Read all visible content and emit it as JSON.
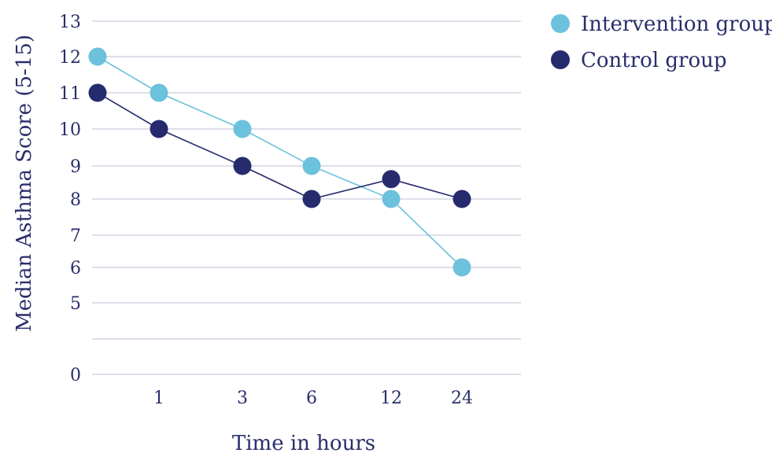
{
  "chart_data": {
    "type": "line",
    "xlabel": "Time in hours",
    "ylabel": "Median Asthma Score (5-15)",
    "categories": [
      "",
      "1",
      "3",
      "6",
      "12",
      "24"
    ],
    "y_ticks": [
      "13",
      "12",
      "11",
      "10",
      "9",
      "8",
      "7",
      "6",
      "5",
      "",
      "0"
    ],
    "grid": true,
    "legend_position": "top-right",
    "series": [
      {
        "name": "Intervention group",
        "color": "#6cc1dc",
        "values": [
          12,
          11,
          10,
          9,
          8,
          6
        ]
      },
      {
        "name": "Control group",
        "color": "#262b6e",
        "values": [
          11,
          10,
          9,
          8,
          8.6,
          8
        ]
      }
    ]
  }
}
